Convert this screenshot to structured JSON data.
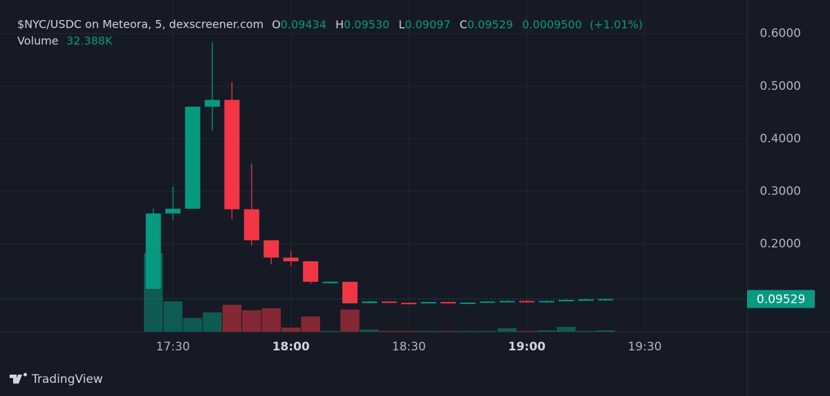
{
  "chart_data": {
    "type": "candlestick",
    "title": "$NYC/USDC on Meteora, 5, dexscreener.com",
    "header": {
      "open_label": "O",
      "open": "0.09434",
      "high_label": "H",
      "high": "0.09530",
      "low_label": "L",
      "low": "0.09097",
      "close_label": "C",
      "close": "0.09529",
      "change": "0.0009500",
      "change_pct": "(+1.01%)"
    },
    "volume_label": "Volume",
    "volume_value": "32.388K",
    "brand": "TradingView",
    "x": [
      "17:25",
      "17:30",
      "17:35",
      "17:40",
      "17:45",
      "17:50",
      "17:55",
      "18:00",
      "18:05",
      "18:10",
      "18:15",
      "18:20",
      "18:25",
      "18:30",
      "18:35",
      "18:40",
      "18:45",
      "18:50",
      "18:55",
      "19:00",
      "19:05",
      "19:10",
      "19:15",
      "19:20"
    ],
    "open": [
      0.1145,
      0.258,
      0.267,
      0.461,
      0.474,
      0.266,
      0.207,
      0.174,
      0.167,
      0.126,
      0.128,
      0.0875,
      0.0905,
      0.088,
      0.0875,
      0.0895,
      0.0875,
      0.0885,
      0.0905,
      0.0915,
      0.089,
      0.0915,
      0.0935,
      0.09434
    ],
    "high": [
      0.267,
      0.309,
      0.461,
      0.584,
      0.508,
      0.353,
      0.207,
      0.186,
      0.167,
      0.129,
      0.128,
      0.0915,
      0.091,
      0.0885,
      0.09,
      0.09,
      0.089,
      0.091,
      0.093,
      0.093,
      0.093,
      0.095,
      0.096,
      0.0953
    ],
    "low": [
      0.1145,
      0.246,
      0.267,
      0.416,
      0.247,
      0.197,
      0.161,
      0.158,
      0.124,
      0.125,
      0.087,
      0.087,
      0.0875,
      0.087,
      0.087,
      0.087,
      0.087,
      0.088,
      0.09,
      0.0885,
      0.0885,
      0.091,
      0.093,
      0.09097
    ],
    "close": [
      0.258,
      0.267,
      0.461,
      0.474,
      0.266,
      0.207,
      0.174,
      0.167,
      0.128,
      0.128,
      0.087,
      0.0905,
      0.088,
      0.0875,
      0.0895,
      0.0875,
      0.0885,
      0.0905,
      0.0915,
      0.089,
      0.0915,
      0.0935,
      0.0945,
      0.09529
    ],
    "volume": [
      1824000,
      704000,
      320000,
      448000,
      624000,
      496000,
      544000,
      96000,
      352000,
      16000,
      512000,
      48000,
      16000,
      16000,
      16000,
      16000,
      16000,
      16000,
      80000,
      16000,
      32000,
      112000,
      16000,
      32388
    ],
    "up_color": "#089981",
    "down_color": "#f23645",
    "xlim": [
      "16:46",
      "19:56"
    ],
    "xticks": [
      "17:30",
      "18:00",
      "18:30",
      "19:00",
      "19:30"
    ],
    "ylim": [
      0.033,
      0.664
    ],
    "yticks": [
      {
        "value": 0.2,
        "label": "0.2000"
      },
      {
        "value": 0.3,
        "label": "0.3000"
      },
      {
        "value": 0.4,
        "label": "0.4000"
      },
      {
        "value": 0.5,
        "label": "0.5000"
      },
      {
        "value": 0.6,
        "label": "0.6000"
      }
    ],
    "volume_ylim": [
      0,
      2400000
    ],
    "grid": true
  }
}
